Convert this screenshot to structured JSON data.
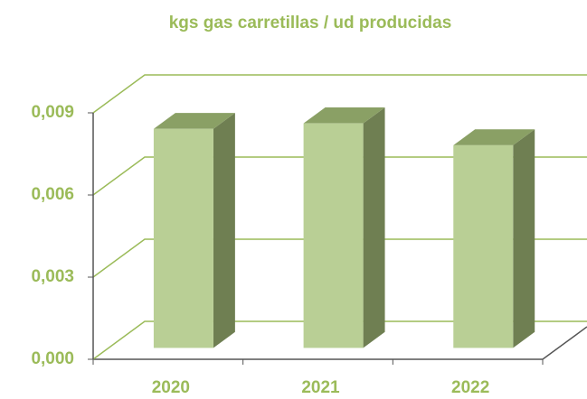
{
  "chart_data": {
    "type": "bar3d",
    "title": "kgs gas carretillas / ud producidas",
    "categories": [
      "2020",
      "2021",
      "2022"
    ],
    "values": [
      0.008,
      0.0082,
      0.0074
    ],
    "color": "#b9cf95",
    "side_color": "#6f7f52",
    "top_color": "#8aa065",
    "ylim": [
      0,
      0.009
    ],
    "yticks": [
      {
        "value": 0,
        "label": "0,000"
      },
      {
        "value": 0.003,
        "label": "0,003"
      },
      {
        "value": 0.006,
        "label": "0,006"
      },
      {
        "value": 0.009,
        "label": "0,009"
      }
    ],
    "grid": true
  }
}
